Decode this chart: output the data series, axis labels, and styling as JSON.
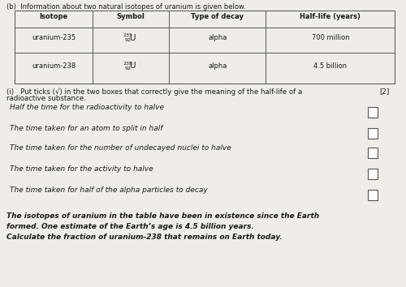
{
  "bg_color": "#f0ede8",
  "header_text": "(b)  Information about two natural isotopes of uranium is given below.",
  "table": {
    "col_headers": [
      "Isotope",
      "Symbol",
      "Type of decay",
      "Half-life (years)"
    ],
    "rows": [
      [
        "uranium-235",
        "235\n92U",
        "alpha",
        "700 million"
      ],
      [
        "uranium-238",
        "238\n92U",
        "alpha",
        "4.5 billion"
      ]
    ]
  },
  "question_i": "(i)   Put ticks (√) in the two boxes that correctly give the meaning of the half-life of a\n       radioactive substance.",
  "mark": "[2]",
  "options": [
    "Half the time for the radioactivity to halve",
    "The time taken for an atom to split in half",
    "The time taken for the number of undecayed nuclei to halve",
    "The time taken for the activity to halve",
    "The time taken for half of the alpha particles to decay"
  ],
  "footer_text": "The isotopes of uranium in the table have been in existence since the Earth\nformed. One estimate of the Earth’s age is 4.5 billion years.\nCalculate the fraction of uranium-238 that remains on Earth today.",
  "font_color": "#1a1a1a",
  "table_line_color": "#555555",
  "box_color": "#ffffff",
  "box_border_color": "#555555"
}
